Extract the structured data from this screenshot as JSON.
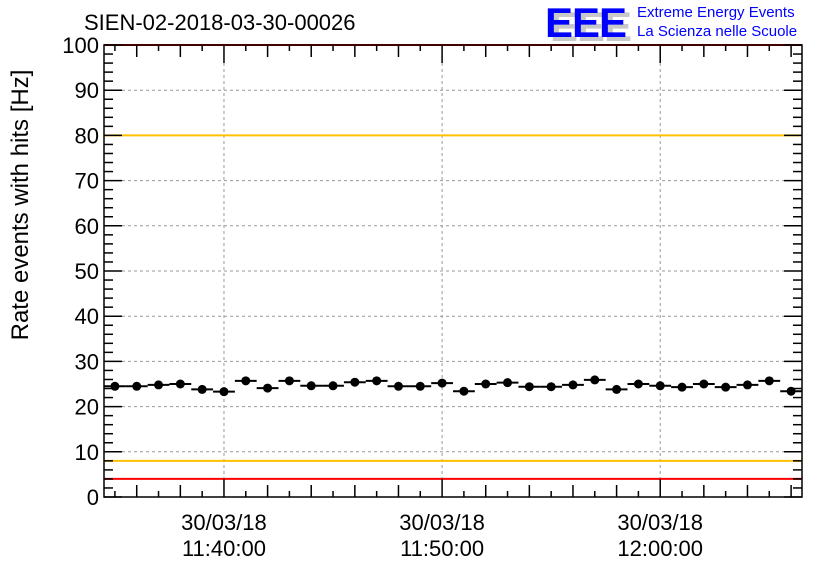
{
  "chart_data": {
    "type": "scatter",
    "title": "SIEN-02-2018-03-30-00026",
    "xlabel": "",
    "ylabel": "Rate events with hits [Hz]",
    "ylim": [
      0,
      100
    ],
    "xlim_minutes": [
      -5.5,
      26.5
    ],
    "x_reference": "30/03/18 11:40:00 = 0 min",
    "grid": true,
    "yticks": [
      "0",
      "10",
      "20",
      "30",
      "40",
      "50",
      "60",
      "70",
      "80",
      "90",
      "100"
    ],
    "xticks": [
      {
        "minute": 0,
        "date": "30/03/18",
        "time": "11:40:00"
      },
      {
        "minute": 10,
        "date": "30/03/18",
        "time": "11:50:00"
      },
      {
        "minute": 20,
        "date": "30/03/18",
        "time": "12:00:00"
      }
    ],
    "x_minutes": [
      -5,
      -4,
      -3,
      -2,
      -1,
      0,
      1,
      2,
      3,
      4,
      5,
      6,
      7,
      8,
      9,
      10,
      11,
      12,
      13,
      14,
      15,
      16,
      17,
      18,
      19,
      20,
      21,
      22,
      23,
      24,
      25,
      26
    ],
    "values": [
      24.5,
      24.5,
      24.8,
      25.0,
      23.8,
      23.3,
      25.7,
      24.1,
      25.7,
      24.6,
      24.6,
      25.4,
      25.7,
      24.5,
      24.5,
      25.2,
      23.4,
      25.0,
      25.3,
      24.4,
      24.4,
      24.8,
      25.9,
      23.8,
      25.0,
      24.6,
      24.3,
      25.0,
      24.3,
      24.8,
      25.7,
      23.4
    ],
    "reference_lines": [
      {
        "y": 100,
        "color": "#ff0000"
      },
      {
        "y": 80,
        "color": "#ffc000"
      },
      {
        "y": 8,
        "color": "#ffc000"
      },
      {
        "y": 4,
        "color": "#ff0000"
      }
    ]
  },
  "logo": {
    "letters": "EEE",
    "line1": "Extreme Energy Events",
    "line2": "La Scienza nelle Scuole"
  }
}
